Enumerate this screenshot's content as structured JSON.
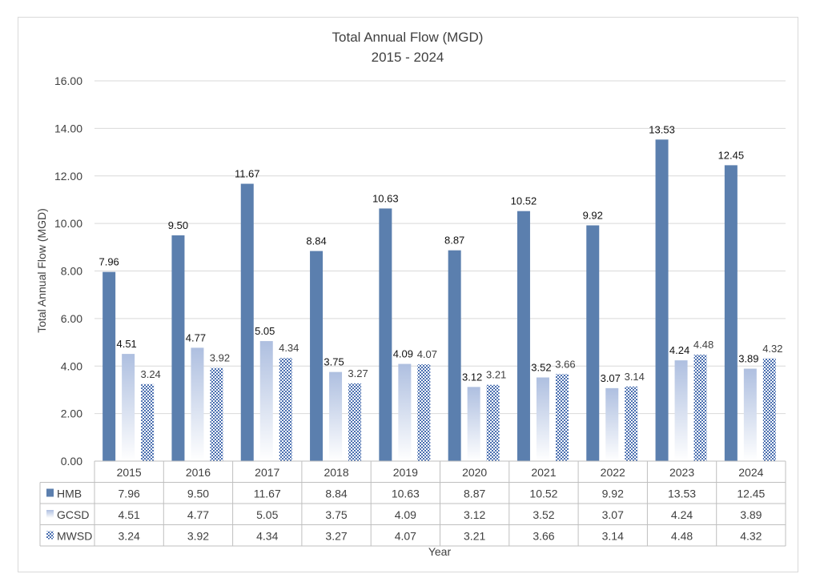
{
  "chart_data": {
    "type": "bar",
    "title": "Total Annual Flow (MGD)",
    "subtitle": "2015 - 2024",
    "xlabel": "Year",
    "ylabel": "Total Annual Flow (MGD)",
    "ylim": [
      0,
      16
    ],
    "yticks": [
      "0.00",
      "2.00",
      "4.00",
      "6.00",
      "8.00",
      "10.00",
      "12.00",
      "14.00",
      "16.00"
    ],
    "grid": true,
    "legend": "data-table",
    "categories": [
      "2015",
      "2016",
      "2017",
      "2018",
      "2019",
      "2020",
      "2021",
      "2022",
      "2023",
      "2024"
    ],
    "series": [
      {
        "name": "HMB",
        "color": "#5b7fae",
        "values": [
          7.96,
          9.5,
          11.67,
          8.84,
          10.63,
          8.87,
          10.52,
          9.92,
          13.53,
          12.45
        ],
        "labels": [
          "7.96",
          "9.50",
          "11.67",
          "8.84",
          "10.63",
          "8.87",
          "10.52",
          "9.92",
          "13.53",
          "12.45"
        ]
      },
      {
        "name": "GCSD",
        "color": "#b4c3e0",
        "values": [
          4.51,
          4.77,
          5.05,
          3.75,
          4.09,
          3.12,
          3.52,
          3.07,
          4.24,
          3.89
        ],
        "labels": [
          "4.51",
          "4.77",
          "5.05",
          "3.75",
          "4.09",
          "3.12",
          "3.52",
          "3.07",
          "4.24",
          "3.89"
        ]
      },
      {
        "name": "MWSD",
        "color": "#4a6fb0",
        "values": [
          3.24,
          3.92,
          4.34,
          3.27,
          4.07,
          3.21,
          3.66,
          3.14,
          4.48,
          4.32
        ],
        "labels": [
          "3.24",
          "3.92",
          "4.34",
          "3.27",
          "4.07",
          "3.21",
          "3.66",
          "3.14",
          "4.48",
          "4.32"
        ]
      }
    ]
  }
}
